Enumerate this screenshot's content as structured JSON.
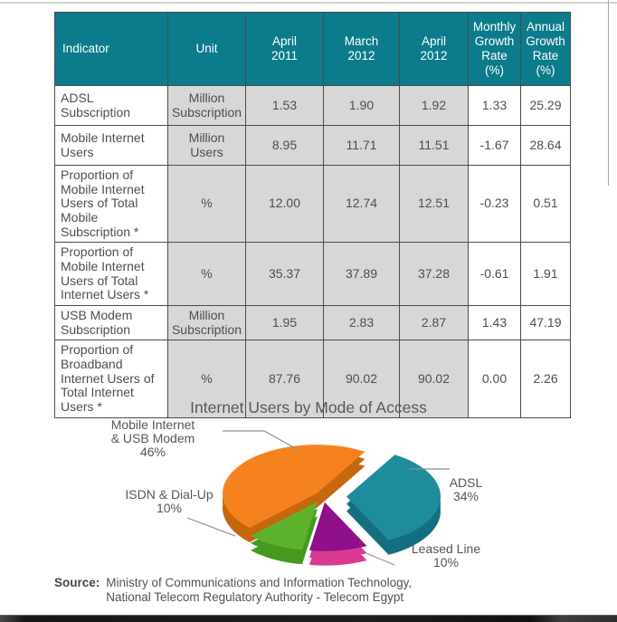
{
  "table": {
    "columns": [
      [
        "Indicator"
      ],
      [
        "Unit"
      ],
      [
        "April",
        "2011"
      ],
      [
        "March",
        "2012"
      ],
      [
        "April",
        "2012"
      ],
      [
        "Monthly",
        "Growth",
        "Rate",
        "(%)"
      ],
      [
        "Annual",
        "Growth",
        "Rate",
        "(%)"
      ]
    ],
    "rows": [
      {
        "indicator": "ADSL Subscription",
        "unit": "Million Subscription",
        "apr_2011": "1.53",
        "mar_2012": "1.90",
        "apr_2012": "1.92",
        "monthly_growth_pct": "1.33",
        "annual_growth_pct": "25.29"
      },
      {
        "indicator": "Mobile Internet Users",
        "unit": "Million Users",
        "apr_2011": "8.95",
        "mar_2012": "11.71",
        "apr_2012": "11.51",
        "monthly_growth_pct": "-1.67",
        "annual_growth_pct": "28.64"
      },
      {
        "indicator": "Proportion of Mobile Internet Users of Total Mobile Subscription *",
        "unit": "%",
        "apr_2011": "12.00",
        "mar_2012": "12.74",
        "apr_2012": "12.51",
        "monthly_growth_pct": "-0.23",
        "annual_growth_pct": "0.51"
      },
      {
        "indicator": "Proportion of Mobile Internet Users of Total Internet Users *",
        "unit": "%",
        "apr_2011": "35.37",
        "mar_2012": "37.89",
        "apr_2012": "37.28",
        "monthly_growth_pct": "-0.61",
        "annual_growth_pct": "1.91"
      },
      {
        "indicator": "USB Modem Subscription",
        "unit": "Million Subscription",
        "apr_2011": "1.95",
        "mar_2012": "2.83",
        "apr_2012": "2.87",
        "monthly_growth_pct": "1.43",
        "annual_growth_pct": "47.19"
      },
      {
        "indicator": "Proportion of Broadband Internet Users of Total Internet Users *",
        "unit": "%",
        "apr_2011": "87.76",
        "mar_2012": "90.02",
        "apr_2012": "90.02",
        "monthly_growth_pct": "0.00",
        "annual_growth_pct": "2.26"
      }
    ]
  },
  "chart_data": {
    "type": "pie",
    "title": "Internet Users by Mode of Access",
    "style": "3d-exploded",
    "start_angle": -59,
    "legend_position": "callout-labels",
    "slices": [
      {
        "label": "ADSL",
        "value": 34,
        "pct_label": "34%",
        "color": "#1e8c9d",
        "side_color": "#136f80",
        "explode": 26
      },
      {
        "label": "Leased Line",
        "value": 10,
        "pct_label": "10%",
        "color": "#8f108a",
        "side_color": "#d93a90",
        "explode": 13
      },
      {
        "label": "ISDN & Dial-Up",
        "value": 10,
        "pct_label": "10%",
        "color": "#5db32c",
        "side_color": "#459a1e",
        "explode": 13
      },
      {
        "label": "Mobile Internet & USB Modem",
        "value": 46,
        "pct_label": "46%",
        "color": "#f5821f",
        "side_color": "#c6660d",
        "explode": 9
      }
    ]
  },
  "source": {
    "label": "Source:",
    "line1": "Ministry of Communications and Information Technology,",
    "line2": "National Telecom Regulatory Authority - Telecom Egypt"
  },
  "colors": {
    "header_bg": "#0c7b8b",
    "header_text": "#ffffff",
    "cell_gray": "#d7d7d7",
    "table_border": "#4c4c4c",
    "body_text": "#4d4e50",
    "leader_line": "#8f8f8f"
  }
}
